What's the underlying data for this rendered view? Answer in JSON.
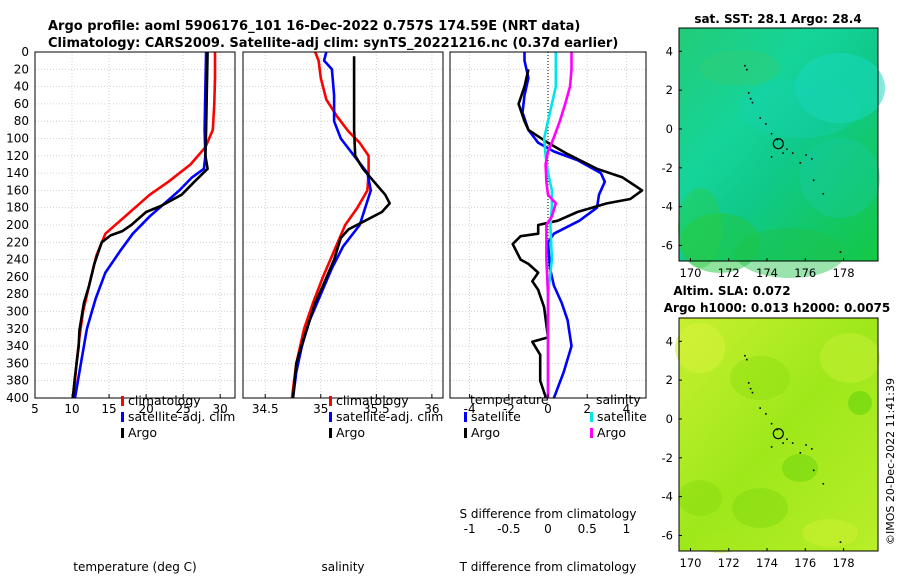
{
  "title": {
    "line1": "Argo profile: aoml 5906176_101 16-Dec-2022 0.757S 174.59E (NRT data)",
    "line2": "Climatology: CARS2009. Satellite-adj clim: synTS_20221216.nc (0.37d earlier)"
  },
  "credit": "©IMOS 20-Dec-2022 11:41:39",
  "colors": {
    "climatology": "#ff0000",
    "satellite": "#0000ff",
    "argo": "#000000",
    "s_satellite": "#00e5e5",
    "s_argo": "#ff00ff",
    "grid": "#c8c8c8"
  },
  "chart_data": [
    {
      "type": "line",
      "id": "temperature",
      "xlabel": "temperature (deg C)",
      "ylim": [
        400,
        0
      ],
      "xlim": [
        5,
        32
      ],
      "xticks": [
        "5",
        "10",
        "15",
        "20",
        "25",
        "30"
      ],
      "yticks": [
        "0",
        "20",
        "40",
        "60",
        "80",
        "100",
        "120",
        "140",
        "160",
        "180",
        "200",
        "220",
        "240",
        "260",
        "280",
        "300",
        "320",
        "340",
        "360",
        "380",
        "400"
      ],
      "legend": [
        "climatology",
        "satellite-adj. clim",
        "Argo"
      ],
      "series": [
        {
          "name": "climatology",
          "color": "#ff0000",
          "points": [
            [
              29.3,
              0
            ],
            [
              29.3,
              30
            ],
            [
              29.2,
              60
            ],
            [
              29.0,
              90
            ],
            [
              28.0,
              110
            ],
            [
              26.0,
              130
            ],
            [
              23.0,
              150
            ],
            [
              20.5,
              165
            ],
            [
              18.5,
              180
            ],
            [
              16.5,
              195
            ],
            [
              14.5,
              210
            ],
            [
              13.3,
              235
            ],
            [
              12.3,
              270
            ],
            [
              11.5,
              300
            ],
            [
              11.0,
              330
            ],
            [
              10.6,
              360
            ],
            [
              10.2,
              400
            ]
          ]
        },
        {
          "name": "satellite-adj. clim",
          "color": "#0000ff",
          "points": [
            [
              28.1,
              0
            ],
            [
              28.0,
              40
            ],
            [
              27.9,
              90
            ],
            [
              28.0,
              120
            ],
            [
              27.8,
              135
            ],
            [
              26.2,
              145
            ],
            [
              24.5,
              160
            ],
            [
              22.5,
              175
            ],
            [
              20.5,
              190
            ],
            [
              18.2,
              210
            ],
            [
              16.5,
              230
            ],
            [
              14.5,
              255
            ],
            [
              13.2,
              285
            ],
            [
              12.0,
              320
            ],
            [
              11.2,
              360
            ],
            [
              10.4,
              400
            ]
          ]
        },
        {
          "name": "Argo",
          "color": "#000000",
          "points": [
            [
              28.3,
              0
            ],
            [
              28.2,
              40
            ],
            [
              28.1,
              90
            ],
            [
              28.0,
              120
            ],
            [
              28.3,
              135
            ],
            [
              26.5,
              150
            ],
            [
              24.8,
              165
            ],
            [
              22.0,
              178
            ],
            [
              20.0,
              185
            ],
            [
              18.0,
              200
            ],
            [
              16.8,
              207
            ],
            [
              15.2,
              212
            ],
            [
              14.0,
              220
            ],
            [
              13.0,
              245
            ],
            [
              12.3,
              270
            ],
            [
              11.6,
              290
            ],
            [
              11.0,
              322
            ],
            [
              10.9,
              340
            ],
            [
              10.4,
              375
            ],
            [
              10.1,
              400
            ]
          ]
        }
      ]
    },
    {
      "type": "line",
      "id": "salinity",
      "xlabel": "salinity",
      "ylim": [
        400,
        0
      ],
      "xlim": [
        34.3,
        36.1
      ],
      "xticks": [
        "34.5",
        "35",
        "35.5",
        "36"
      ],
      "legend": [
        "climatology",
        "satellite-adj. clim",
        "Argo"
      ],
      "series": [
        {
          "name": "climatology",
          "color": "#ff0000",
          "points": [
            [
              34.95,
              0
            ],
            [
              34.98,
              10
            ],
            [
              35.0,
              30
            ],
            [
              35.05,
              55
            ],
            [
              35.15,
              75
            ],
            [
              35.25,
              92
            ],
            [
              35.35,
              105
            ],
            [
              35.43,
              120
            ],
            [
              35.43,
              140
            ],
            [
              35.42,
              160
            ],
            [
              35.33,
              180
            ],
            [
              35.22,
              200
            ],
            [
              35.12,
              230
            ],
            [
              35.02,
              260
            ],
            [
              34.93,
              290
            ],
            [
              34.85,
              320
            ],
            [
              34.78,
              360
            ],
            [
              34.74,
              400
            ]
          ]
        },
        {
          "name": "satellite-adj. clim",
          "color": "#0000ff",
          "points": [
            [
              35.05,
              0
            ],
            [
              35.03,
              10
            ],
            [
              35.1,
              20
            ],
            [
              35.12,
              50
            ],
            [
              35.12,
              80
            ],
            [
              35.18,
              100
            ],
            [
              35.3,
              120
            ],
            [
              35.42,
              140
            ],
            [
              35.45,
              160
            ],
            [
              35.35,
              200
            ],
            [
              35.2,
              225
            ],
            [
              35.1,
              250
            ],
            [
              35.0,
              280
            ],
            [
              34.9,
              310
            ],
            [
              34.83,
              340
            ],
            [
              34.78,
              370
            ],
            [
              34.75,
              400
            ]
          ]
        },
        {
          "name": "Argo",
          "color": "#000000",
          "points": [
            [
              35.3,
              5
            ],
            [
              35.3,
              40
            ],
            [
              35.3,
              90
            ],
            [
              35.31,
              120
            ],
            [
              35.38,
              135
            ],
            [
              35.48,
              150
            ],
            [
              35.58,
              165
            ],
            [
              35.62,
              175
            ],
            [
              35.55,
              185
            ],
            [
              35.4,
              195
            ],
            [
              35.25,
              205
            ],
            [
              35.18,
              215
            ],
            [
              35.12,
              240
            ],
            [
              35.02,
              270
            ],
            [
              34.95,
              290
            ],
            [
              34.9,
              310
            ],
            [
              34.85,
              330
            ],
            [
              34.78,
              360
            ],
            [
              34.75,
              400
            ]
          ]
        }
      ]
    },
    {
      "type": "line",
      "id": "differences",
      "xlabel": "T difference from climatology",
      "top_xlabel": "S difference from climatology",
      "ylim": [
        400,
        0
      ],
      "xlim": [
        -5,
        5
      ],
      "xticks": [
        "-4",
        "-2",
        "0",
        "2",
        "4"
      ],
      "top_xlim": [
        -1.25,
        1.25
      ],
      "top_xticks": [
        "-1",
        "-0.5",
        "0",
        "0.5",
        "1"
      ],
      "legend_titles": {
        "temperature": "temperature",
        "salinity": "salinity"
      },
      "legend": [
        "satellite",
        "Argo",
        "satellite",
        "Argo"
      ],
      "series": [
        {
          "name": "T satellite",
          "color": "#0000ff",
          "points": [
            [
              -1.2,
              0
            ],
            [
              -1.2,
              10
            ],
            [
              -1.0,
              30
            ],
            [
              -1.2,
              50
            ],
            [
              -1.3,
              70
            ],
            [
              -1.0,
              90
            ],
            [
              -0.5,
              105
            ],
            [
              0.3,
              115
            ],
            [
              1.5,
              125
            ],
            [
              2.7,
              140
            ],
            [
              2.9,
              150
            ],
            [
              2.6,
              165
            ],
            [
              2.5,
              180
            ],
            [
              1.6,
              195
            ],
            [
              0.3,
              210
            ],
            [
              0.0,
              220
            ],
            [
              0.1,
              250
            ],
            [
              0.3,
              270
            ],
            [
              0.7,
              290
            ],
            [
              1.0,
              310
            ],
            [
              1.2,
              340
            ],
            [
              0.8,
              370
            ],
            [
              0.3,
              400
            ]
          ]
        },
        {
          "name": "T Argo",
          "color": "#000000",
          "points": [
            [
              -1.0,
              20
            ],
            [
              -1.2,
              40
            ],
            [
              -1.5,
              60
            ],
            [
              -1.2,
              80
            ],
            [
              -1.0,
              90
            ],
            [
              0.0,
              105
            ],
            [
              1.0,
              118
            ],
            [
              2.5,
              135
            ],
            [
              3.8,
              145
            ],
            [
              4.8,
              160
            ],
            [
              4.2,
              170
            ],
            [
              3.0,
              175
            ],
            [
              1.5,
              185
            ],
            [
              0.5,
              195
            ],
            [
              -0.5,
              200
            ],
            [
              -0.5,
              210
            ],
            [
              -1.4,
              213
            ],
            [
              -1.8,
              222
            ],
            [
              -1.4,
              240
            ],
            [
              -1.0,
              245
            ],
            [
              -0.5,
              255
            ],
            [
              -0.8,
              265
            ],
            [
              -0.5,
              275
            ],
            [
              -0.2,
              295
            ],
            [
              0.0,
              330
            ],
            [
              -0.8,
              335
            ],
            [
              -0.4,
              350
            ],
            [
              -0.4,
              380
            ],
            [
              -0.1,
              400
            ]
          ]
        },
        {
          "name": "S satellite",
          "color": "#00e5e5",
          "points": [
            [
              0.1,
              0
            ],
            [
              0.1,
              20
            ],
            [
              0.1,
              40
            ],
            [
              0.05,
              60
            ],
            [
              0.0,
              80
            ],
            [
              -0.05,
              100
            ],
            [
              -0.03,
              120
            ],
            [
              0.0,
              140
            ],
            [
              0.05,
              160
            ],
            [
              0.05,
              180
            ],
            [
              0.03,
              200
            ],
            [
              0.05,
              240
            ],
            [
              0.0,
              280
            ],
            [
              0.0,
              320
            ],
            [
              0.0,
              360
            ],
            [
              0.0,
              400
            ]
          ]
        },
        {
          "name": "S Argo",
          "color": "#ff00ff",
          "points": [
            [
              0.3,
              0
            ],
            [
              0.3,
              20
            ],
            [
              0.28,
              40
            ],
            [
              0.22,
              60
            ],
            [
              0.15,
              80
            ],
            [
              0.07,
              100
            ],
            [
              0.0,
              115
            ],
            [
              -0.03,
              130
            ],
            [
              -0.02,
              150
            ],
            [
              0.0,
              165
            ],
            [
              0.1,
              175
            ],
            [
              0.05,
              190
            ],
            [
              -0.02,
              200
            ],
            [
              -0.02,
              240
            ],
            [
              0.0,
              280
            ],
            [
              0.0,
              320
            ],
            [
              0.0,
              360
            ],
            [
              0.0,
              400
            ]
          ]
        }
      ]
    },
    {
      "type": "heatmap",
      "id": "sst_map",
      "title": "sat. SST: 28.1 Argo: 28.4",
      "xticks": [
        "170",
        "172",
        "174",
        "176",
        "178"
      ],
      "yticks": [
        "4",
        "2",
        "0",
        "-2",
        "-4",
        "-6"
      ],
      "xlim": [
        169.4,
        179.8
      ],
      "ylim": [
        -6.8,
        5.2
      ],
      "argo_position": [
        174.59,
        -0.757
      ]
    },
    {
      "type": "heatmap",
      "id": "sla_map",
      "title": "Altim. SLA: 0.072",
      "subtitle": "Argo h1000: 0.013 h2000: 0.0075",
      "xticks": [
        "170",
        "172",
        "174",
        "176",
        "178"
      ],
      "yticks": [
        "4",
        "2",
        "0",
        "-2",
        "-4",
        "-6"
      ],
      "xlim": [
        169.4,
        179.8
      ],
      "ylim": [
        -6.8,
        5.2
      ],
      "argo_position": [
        174.59,
        -0.757
      ]
    }
  ]
}
